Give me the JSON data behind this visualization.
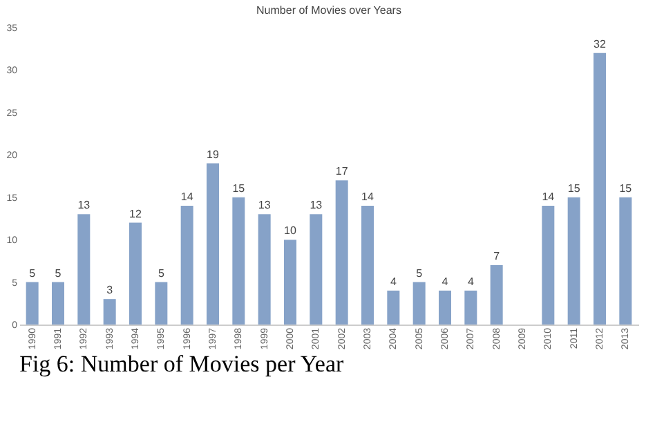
{
  "chart_data": {
    "type": "bar",
    "title": "Number of Movies over Years",
    "categories": [
      "1990",
      "1991",
      "1992",
      "1993",
      "1994",
      "1995",
      "1996",
      "1997",
      "1998",
      "1999",
      "2000",
      "2001",
      "2002",
      "2003",
      "2004",
      "2005",
      "2006",
      "2007",
      "2008",
      "2009",
      "2010",
      "2011",
      "2012",
      "2013"
    ],
    "values": [
      5,
      5,
      13,
      3,
      12,
      5,
      14,
      19,
      15,
      13,
      10,
      13,
      17,
      14,
      4,
      5,
      4,
      4,
      7,
      null,
      14,
      15,
      32,
      15
    ],
    "color": "#86a2c8",
    "ylim": [
      0,
      35
    ],
    "yticks": [
      0,
      5,
      10,
      15,
      20,
      25,
      30,
      35
    ],
    "grid": false,
    "data_labels": true,
    "annotations": [
      "Fig 6: Number of Movies per Year"
    ]
  }
}
